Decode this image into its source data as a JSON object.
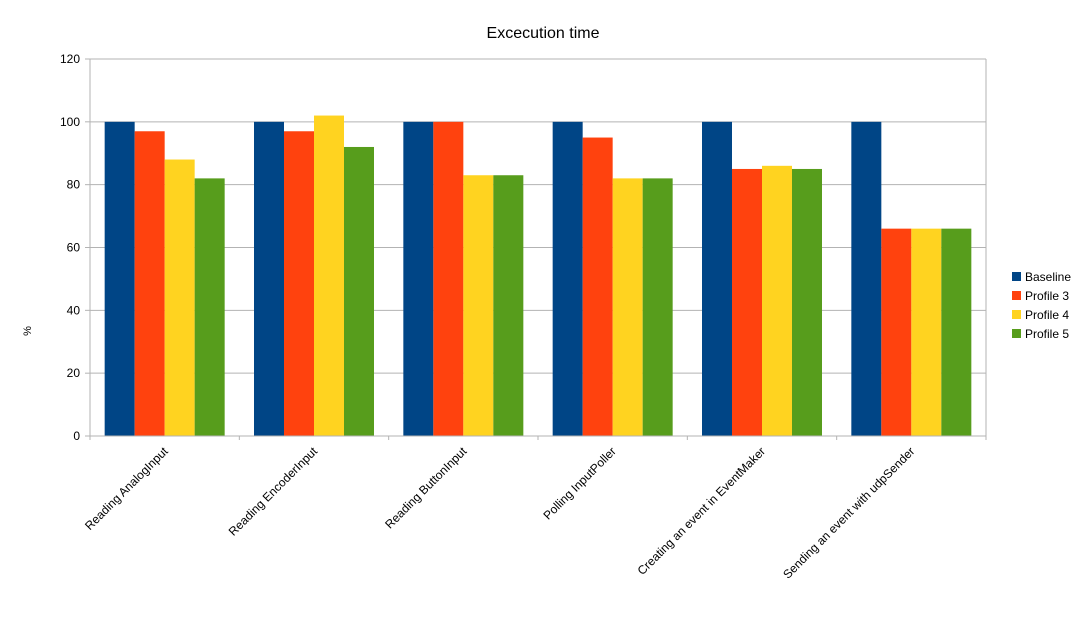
{
  "chart_data": {
    "type": "bar",
    "title": "Excecution time",
    "xlabel": "",
    "ylabel": "%",
    "ylim": [
      0,
      120
    ],
    "yticks": [
      0,
      20,
      40,
      60,
      80,
      100,
      120
    ],
    "grid": true,
    "legend_position": "right",
    "categories": [
      "Reading AnalogInput",
      "Reading EncoderInput",
      "Reading ButtonInput",
      "Polling InputPoller",
      "Creating an event in EventMaker",
      "Sending an event with udpSender"
    ],
    "series": [
      {
        "name": "Baseline",
        "color": "#004586",
        "values": [
          100,
          100,
          100,
          100,
          100,
          100
        ]
      },
      {
        "name": "Profile 3",
        "color": "#ff420e",
        "values": [
          97,
          97,
          100,
          95,
          85,
          66
        ]
      },
      {
        "name": "Profile 4",
        "color": "#ffd320",
        "values": [
          88,
          102,
          83,
          82,
          86,
          66
        ]
      },
      {
        "name": "Profile 5",
        "color": "#579d1c",
        "values": [
          82,
          92,
          83,
          82,
          85,
          66
        ]
      }
    ]
  }
}
